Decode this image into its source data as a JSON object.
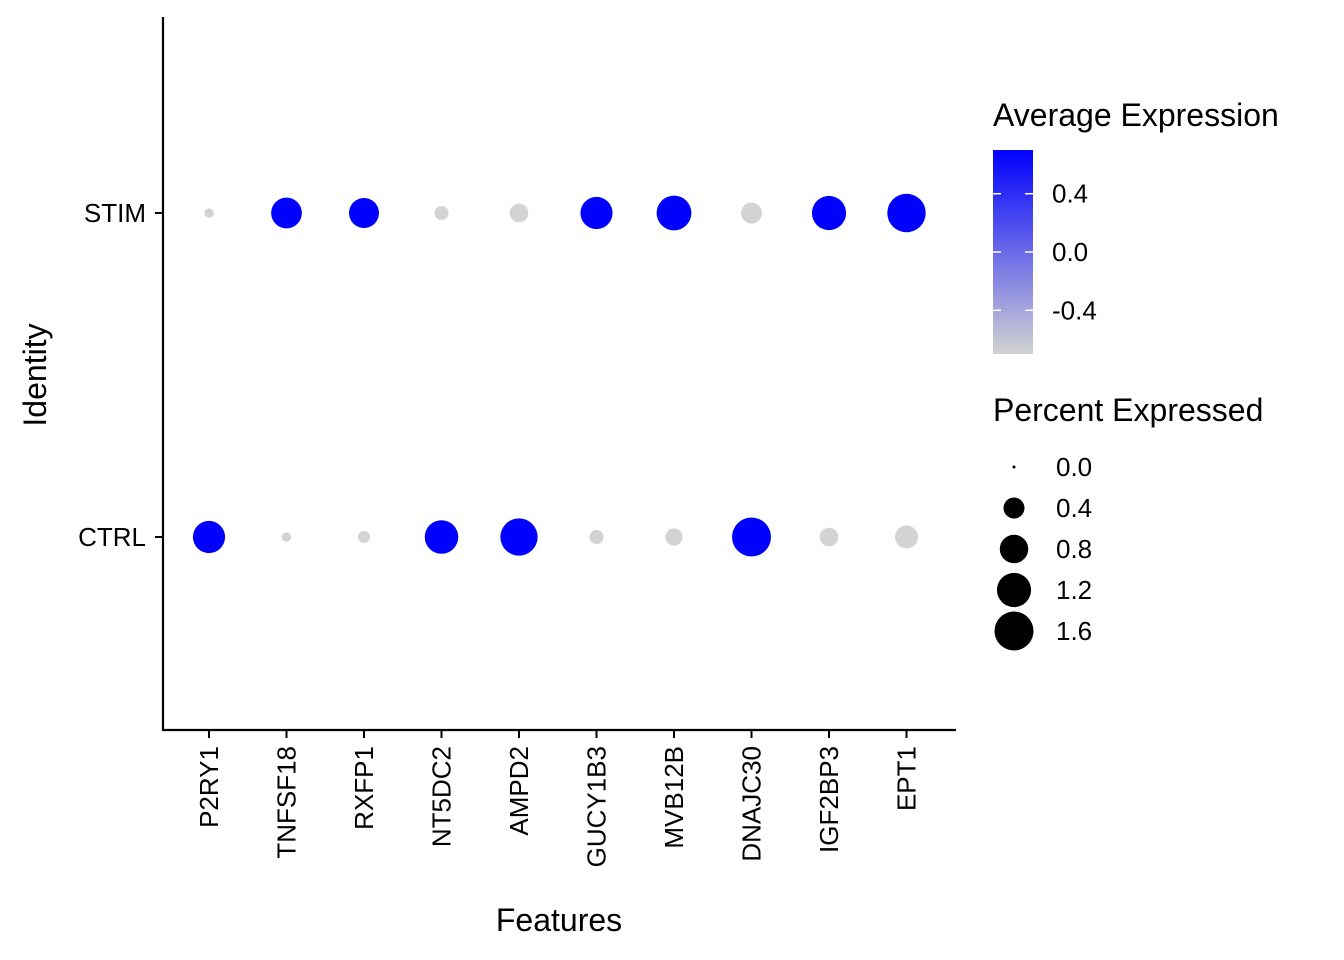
{
  "chart_data": {
    "type": "dot",
    "xlabel": "Features",
    "ylabel": "Identity",
    "categories": [
      "P2RY1",
      "TNFSF18",
      "RXFP1",
      "NT5DC2",
      "AMPD2",
      "GUCY1B3",
      "MVB12B",
      "DNAJC30",
      "IGF2BP3",
      "EPT1"
    ],
    "identities": [
      "CTRL",
      "STIM"
    ],
    "series": [
      {
        "identity": "STIM",
        "avg_expression": [
          -0.7,
          0.7,
          0.7,
          -0.7,
          -0.7,
          0.7,
          0.7,
          -0.7,
          0.7,
          0.7
        ],
        "pct_expressed": [
          0.05,
          0.95,
          0.9,
          0.15,
          0.3,
          1.05,
          1.25,
          0.4,
          1.2,
          1.55
        ]
      },
      {
        "identity": "CTRL",
        "avg_expression": [
          0.7,
          -0.7,
          -0.7,
          0.7,
          0.7,
          -0.7,
          -0.7,
          0.7,
          -0.7,
          -0.7
        ],
        "pct_expressed": [
          1.05,
          0.05,
          0.1,
          1.15,
          1.45,
          0.15,
          0.25,
          1.6,
          0.3,
          0.5
        ]
      }
    ],
    "color_legend": {
      "title": "Average Expression",
      "low_color": "#d3d3d3",
      "high_color": "#0000ff",
      "range": [
        -0.7,
        0.7
      ],
      "ticks": [
        "0.4",
        "0.0",
        "-0.4"
      ]
    },
    "size_legend": {
      "title": "Percent Expressed",
      "values": [
        0.0,
        0.4,
        0.8,
        1.2,
        1.6
      ],
      "labels": [
        "0.0",
        "0.4",
        "0.8",
        "1.2",
        "1.6"
      ]
    },
    "grid": false
  }
}
